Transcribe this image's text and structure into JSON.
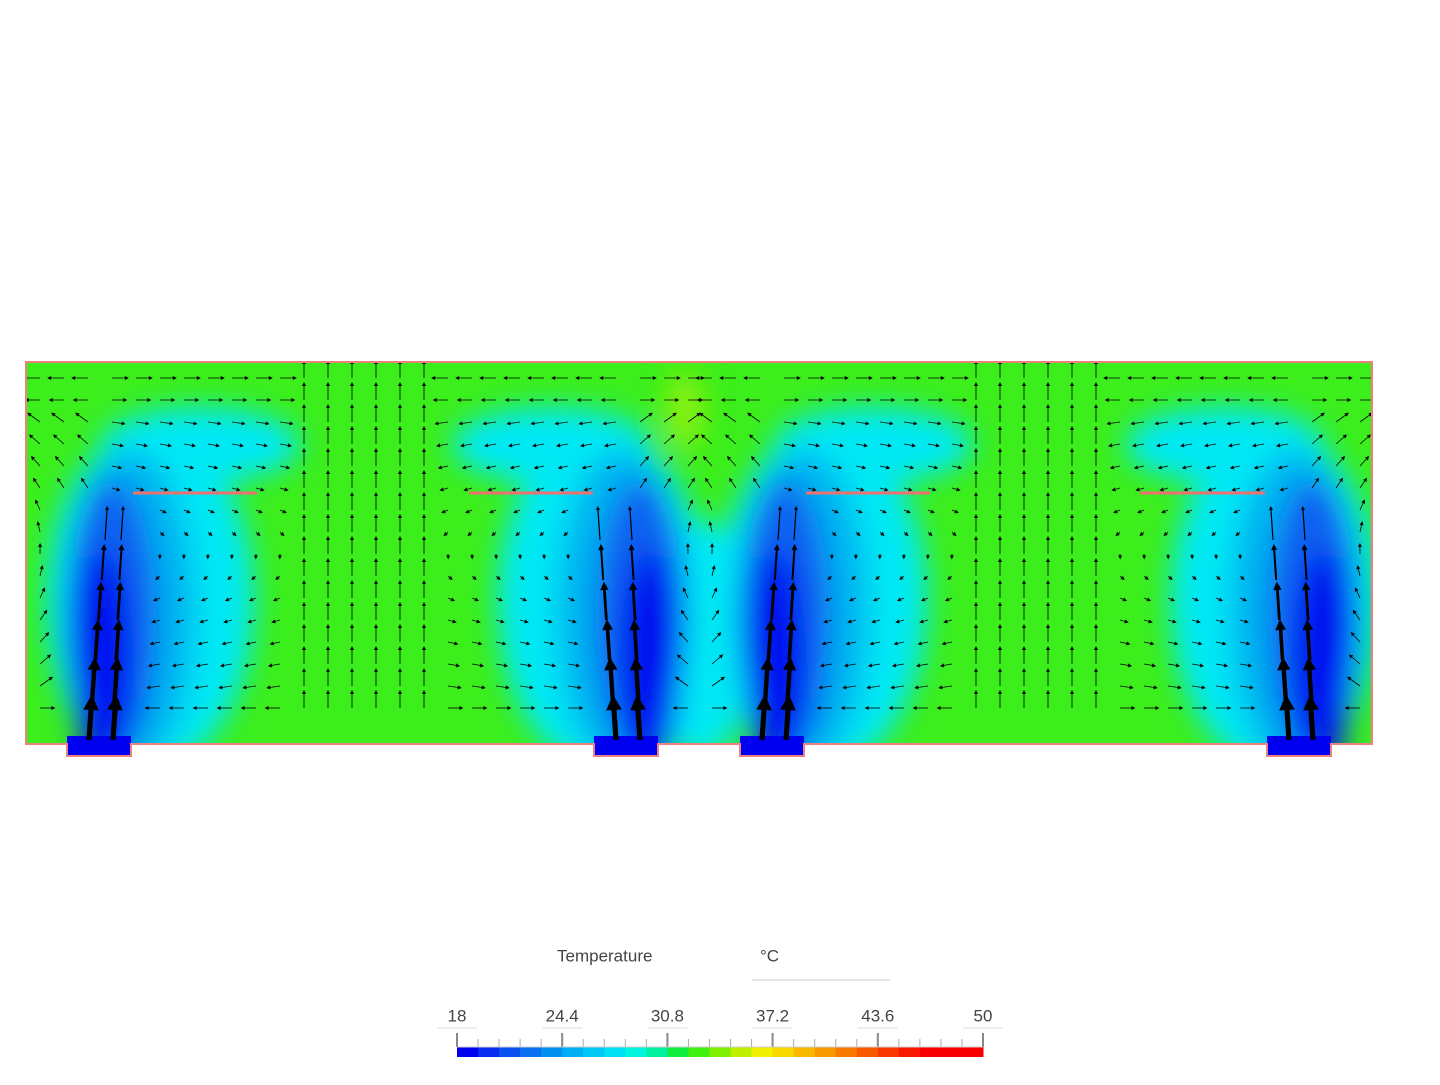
{
  "legend": {
    "title": "Temperature",
    "unit": "°C",
    "range": [
      18,
      50
    ],
    "ticks": [
      18,
      24.4,
      30.8,
      37.2,
      43.6,
      50
    ],
    "colors": [
      "#0000f0",
      "#0a2cf0",
      "#0a50f0",
      "#0a70f0",
      "#0090f0",
      "#00aef4",
      "#00c8f6",
      "#00e0f4",
      "#00f4e0",
      "#00f0a0",
      "#10ec40",
      "#40f010",
      "#80f000",
      "#c0f000",
      "#f0f000",
      "#f8d800",
      "#f8b800",
      "#f89800",
      "#f87800",
      "#f85800",
      "#f83800",
      "#f81800",
      "#f80000",
      "#f80000",
      "#f80000"
    ]
  }
}
